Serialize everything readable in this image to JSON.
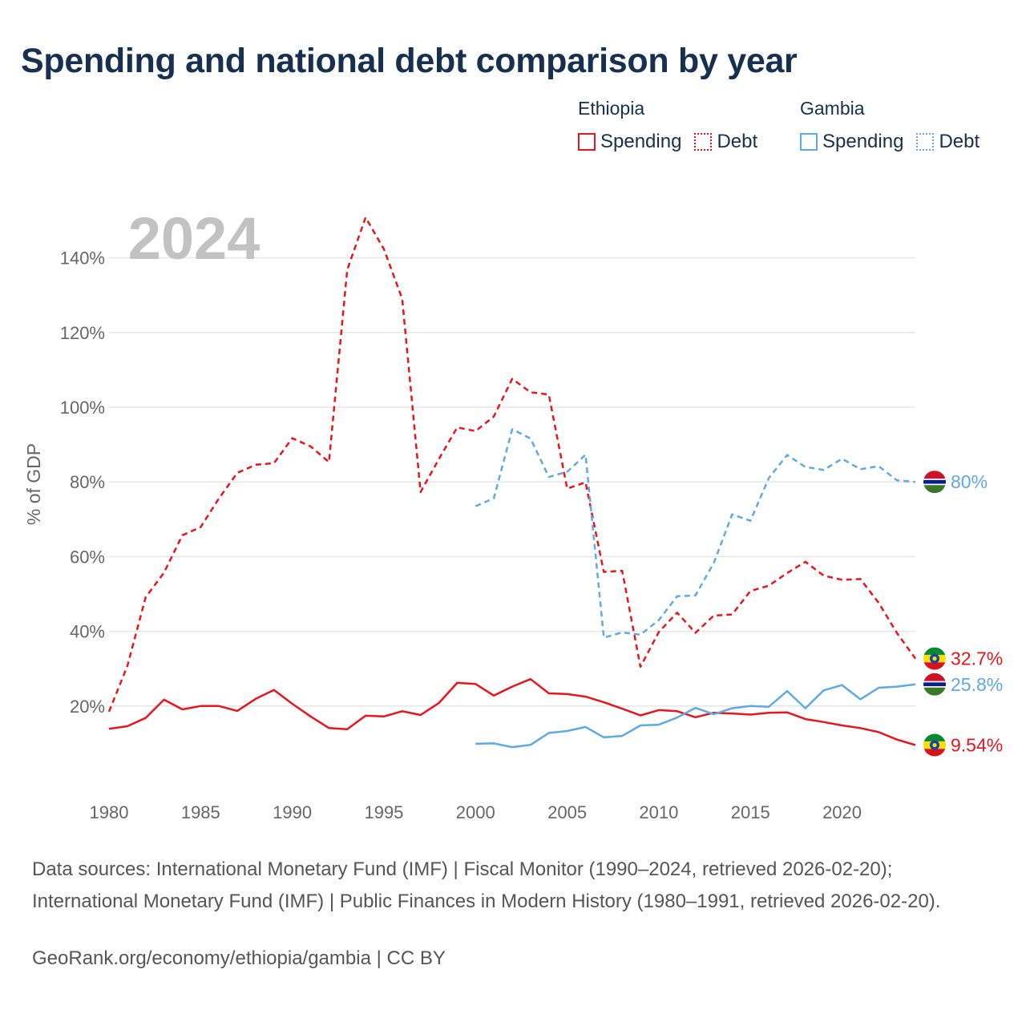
{
  "title": "Spending and national debt comparison by year",
  "legend": [
    {
      "country": "Ethiopia",
      "color": "#e8161c",
      "spending_label": "Spending",
      "debt_label": "Debt"
    },
    {
      "country": "Gambia",
      "color": "#5ea9e6",
      "spending_label": "Spending",
      "debt_label": "Debt"
    }
  ],
  "sources_text": "Data sources: International Monetary Fund (IMF) | Fiscal Monitor (1990–2024, retrieved 2026-02-20); International Monetary Fund (IMF) | Public Finances in Modern History (1980–1991, retrieved 2026-02-20).",
  "credit": "GeoRank.org/economy/ethiopia/gambia | CC BY",
  "chart_data": {
    "type": "line",
    "title": "Spending and national debt comparison by year",
    "year_watermark": "2024",
    "xlabel": "",
    "ylabel": "% of GDP",
    "xlim": [
      1980,
      2024
    ],
    "ylim": [
      0,
      150
    ],
    "x_ticks": [
      1980,
      1985,
      1990,
      1995,
      2000,
      2005,
      2010,
      2015,
      2020
    ],
    "y_ticks": [
      20,
      40,
      60,
      80,
      100,
      120,
      140
    ],
    "y_tick_labels": [
      "20%",
      "40%",
      "60%",
      "80%",
      "100%",
      "120%",
      "140%"
    ],
    "grid": true,
    "series": [
      {
        "name": "Ethiopia Debt",
        "country": "Ethiopia",
        "metric": "Debt",
        "color": "#e8161c",
        "dashed": true,
        "x": [
          1980,
          1981,
          1982,
          1983,
          1984,
          1985,
          1986,
          1987,
          1988,
          1989,
          1990,
          1991,
          1992,
          1993,
          1994,
          1995,
          1996,
          1997,
          1998,
          1999,
          2000,
          2001,
          2002,
          2003,
          2004,
          2005,
          2006,
          2007,
          2008,
          2009,
          2010,
          2011,
          2012,
          2013,
          2014,
          2015,
          2016,
          2017,
          2018,
          2019,
          2020,
          2021,
          2022,
          2023,
          2024
        ],
        "values": [
          18.5,
          30.7,
          49.1,
          55.7,
          65.7,
          67.9,
          75.6,
          82.4,
          84.6,
          85.0,
          91.7,
          89.5,
          85.3,
          136.8,
          150.8,
          142.3,
          129.0,
          77.3,
          86.1,
          94.6,
          93.6,
          97.5,
          107.6,
          104.0,
          103.4,
          78.2,
          79.9,
          55.9,
          56.2,
          30.5,
          39.8,
          45.0,
          39.6,
          44.2,
          44.5,
          50.8,
          52.2,
          55.6,
          58.6,
          54.9,
          53.8,
          54.0,
          47.6,
          39.5,
          32.7
        ],
        "end_label": "32.7%"
      },
      {
        "name": "Ethiopia Spending",
        "country": "Ethiopia",
        "metric": "Spending",
        "color": "#e8161c",
        "dashed": false,
        "x": [
          1980,
          1981,
          1982,
          1983,
          1984,
          1985,
          1986,
          1987,
          1988,
          1989,
          1990,
          1991,
          1992,
          1993,
          1994,
          1995,
          1996,
          1997,
          1998,
          1999,
          2000,
          2001,
          2002,
          2003,
          2004,
          2005,
          2006,
          2007,
          2008,
          2009,
          2010,
          2011,
          2012,
          2013,
          2014,
          2015,
          2016,
          2017,
          2018,
          2019,
          2020,
          2021,
          2022,
          2023,
          2024
        ],
        "values": [
          13.9,
          14.6,
          16.8,
          21.7,
          19.1,
          20.0,
          20.0,
          18.7,
          21.9,
          24.3,
          20.6,
          17.2,
          14.1,
          13.8,
          17.4,
          17.2,
          18.6,
          17.6,
          20.8,
          26.2,
          25.9,
          22.8,
          25.2,
          27.2,
          23.4,
          23.2,
          22.5,
          21.0,
          19.3,
          17.5,
          18.9,
          18.6,
          17.0,
          18.2,
          18.0,
          17.7,
          18.2,
          18.3,
          16.5,
          15.7,
          14.8,
          14.1,
          13.0,
          11.0,
          9.54
        ],
        "end_label": "9.54%"
      },
      {
        "name": "Gambia Debt",
        "country": "Gambia",
        "metric": "Debt",
        "color": "#5ea9e6",
        "dashed": true,
        "x": [
          2000,
          2001,
          2002,
          2003,
          2004,
          2005,
          2006,
          2007,
          2008,
          2009,
          2010,
          2011,
          2012,
          2013,
          2014,
          2015,
          2016,
          2017,
          2018,
          2019,
          2020,
          2021,
          2022,
          2023,
          2024
        ],
        "values": [
          73.5,
          75.6,
          94.1,
          91.6,
          81.3,
          82.7,
          87.3,
          38.3,
          39.7,
          39.1,
          43.0,
          49.4,
          49.6,
          58.3,
          71.3,
          69.6,
          81.0,
          87.2,
          84.0,
          83.2,
          86.2,
          83.4,
          84.2,
          80.4,
          80
        ],
        "end_label": "80%"
      },
      {
        "name": "Gambia Spending",
        "country": "Gambia",
        "metric": "Spending",
        "color": "#5ea9e6",
        "dashed": false,
        "x": [
          2000,
          2001,
          2002,
          2003,
          2004,
          2005,
          2006,
          2007,
          2008,
          2009,
          2010,
          2011,
          2012,
          2013,
          2014,
          2015,
          2016,
          2017,
          2018,
          2019,
          2020,
          2021,
          2022,
          2023,
          2024
        ],
        "values": [
          9.9,
          10.0,
          9.0,
          9.6,
          12.8,
          13.3,
          14.4,
          11.6,
          12.0,
          14.8,
          15.0,
          16.9,
          19.5,
          17.8,
          19.4,
          20.0,
          19.8,
          24.0,
          19.4,
          24.2,
          25.6,
          21.8,
          24.9,
          25.2,
          25.8
        ],
        "end_label": "25.8%"
      }
    ]
  }
}
